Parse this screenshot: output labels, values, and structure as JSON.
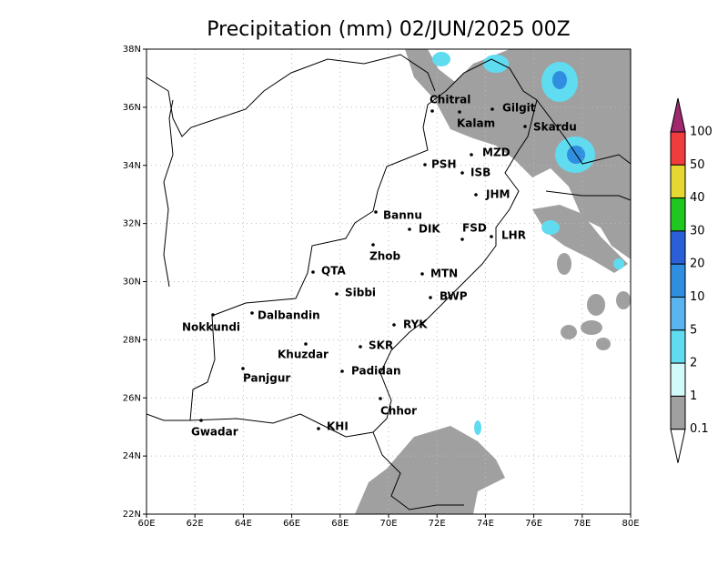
{
  "title": "Precipitation (mm) 02/JUN/2025 00Z",
  "lat_ticks": [
    "22N",
    "24N",
    "26N",
    "28N",
    "30N",
    "32N",
    "34N",
    "36N",
    "38N"
  ],
  "lon_ticks": [
    "60E",
    "62E",
    "64E",
    "66E",
    "68E",
    "70E",
    "72E",
    "74E",
    "76E",
    "78E",
    "80E"
  ],
  "cities": [
    "Chitral",
    "Kalam",
    "Gilgit",
    "Skardu",
    "MZD",
    "PSH",
    "ISB",
    "JHM",
    "Bannu",
    "DIK",
    "FSD",
    "LHR",
    "Zhob",
    "QTA",
    "MTN",
    "Sibbi",
    "BWP",
    "Dalbandin",
    "Nokkundi",
    "RYK",
    "Khuzdar",
    "SKR",
    "Panjgur",
    "Padidan",
    "Chhor",
    "KHI",
    "Gwadar"
  ],
  "colorbar": {
    "labels": [
      "100",
      "50",
      "40",
      "30",
      "20",
      "10",
      "5",
      "2",
      "1",
      "0.1"
    ],
    "colors": [
      "#f03c3c",
      "#e6d832",
      "#1ec81e",
      "#2a5fd8",
      "#2f8ee0",
      "#5ab4f0",
      "#5fdcf0",
      "#d2fafa",
      "#a0a0a0"
    ],
    "over_color": "#a0286e",
    "under_color": "#ffffff"
  }
}
